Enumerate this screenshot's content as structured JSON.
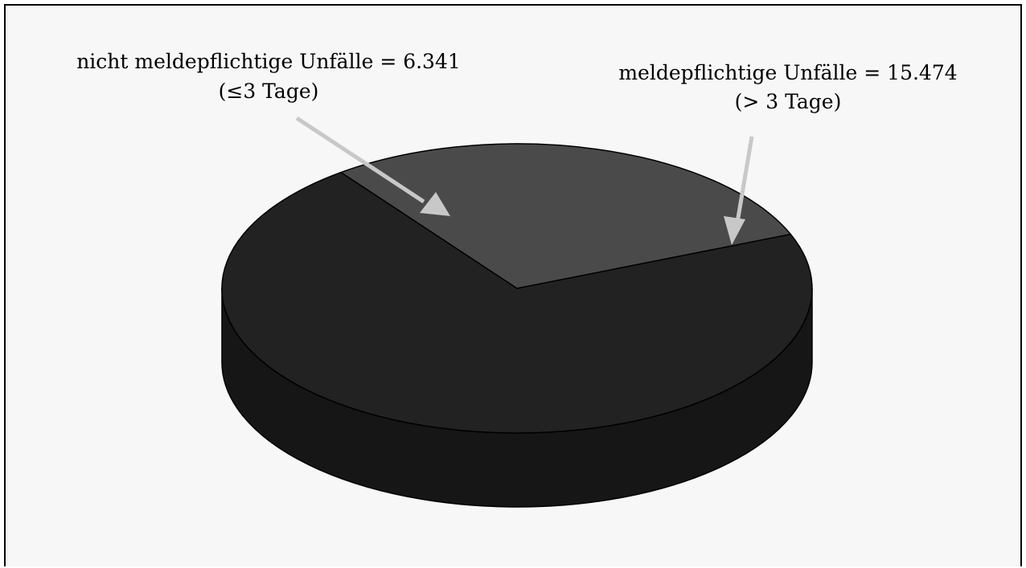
{
  "chart_data": {
    "type": "pie",
    "slices": [
      {
        "label": "nicht meldepflichtige Unfälle = 6.341",
        "sublabel": "(≤3 Tage)",
        "value": 6341,
        "color": "#4a4a4a"
      },
      {
        "label": "meldepflichtige Unfälle = 15.474",
        "sublabel": "(> 3 Tage)",
        "value": 15474,
        "color": "#222222"
      }
    ],
    "side_color": "#161616",
    "background": "#f7f7f7",
    "arrow_color": "#c8c8c8"
  }
}
